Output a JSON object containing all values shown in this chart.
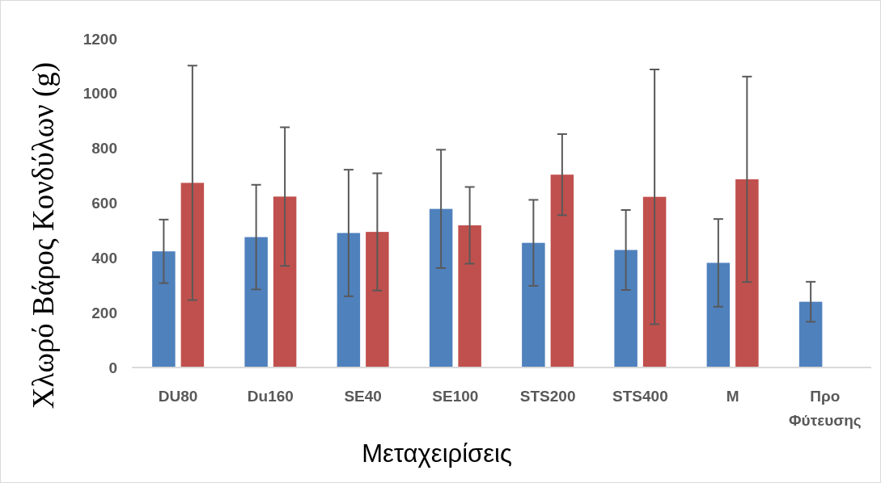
{
  "chart_data": {
    "type": "bar",
    "xlabel": "Μεταχειρίσεις",
    "ylabel": "Χλωρό Βάρος Κονδύλων (g)",
    "categories": [
      "DU80",
      "Du160",
      "SE40",
      "SE100",
      "STS200",
      "STS400",
      "M",
      "Προ Φύτευσης"
    ],
    "series": [
      {
        "color": "#4f81bd",
        "values": [
          424,
          476,
          491,
          579,
          455,
          429,
          382,
          240
        ],
        "errors": [
          116,
          191,
          231,
          216,
          157,
          146,
          160,
          73
        ]
      },
      {
        "color": "#c0504d",
        "values": [
          674,
          624,
          495,
          519,
          704,
          623,
          687,
          null
        ],
        "errors": [
          428,
          253,
          214,
          140,
          148,
          465,
          375,
          null
        ]
      }
    ],
    "ylim": [
      0,
      1200
    ],
    "yticks": [
      0,
      200,
      400,
      600,
      800,
      1000,
      1200
    ],
    "grid": false
  }
}
